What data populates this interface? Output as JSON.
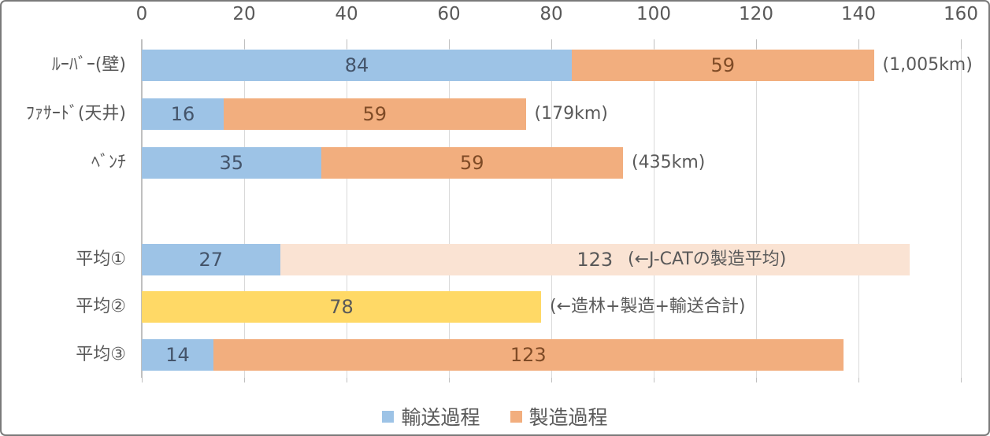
{
  "chart_data": {
    "type": "bar",
    "orientation": "horizontal",
    "stacked": true,
    "title": "",
    "x_axis": {
      "min": 0,
      "max": 160,
      "ticks": [
        "0",
        "20",
        "40",
        "60",
        "80",
        "100",
        "120",
        "140",
        "160"
      ],
      "grid": true
    },
    "colors": {
      "transport_blue": "#9DC3E6",
      "manufacture_orange": "#F2AE7E",
      "average_peach": "#FAE3D3",
      "total_yellow": "#FFD966",
      "value_on_blue": "#44546A",
      "value_on_orange": "#7F4B26",
      "value_on_light": "#595959",
      "axis_text": "#595959",
      "gridline": "#D9D9D9",
      "axis_line": "#BFBFBF"
    },
    "legend": {
      "position": "bottom",
      "items": [
        {
          "label": "輸送過程",
          "color": "#9DC3E6"
        },
        {
          "label": "製造過程",
          "color": "#F2AE7E"
        }
      ]
    },
    "rows": [
      {
        "label": "ﾙｰﾊﾞｰ(壁)",
        "annotation": "(1,005km)",
        "segments": [
          {
            "series": "輸送過程",
            "value": 84,
            "color": "#9DC3E6",
            "label_color": "#44546A"
          },
          {
            "series": "製造過程",
            "value": 59,
            "color": "#F2AE7E",
            "label_color": "#7F4B26"
          }
        ]
      },
      {
        "label": "ﾌｧｻｰﾄﾞ(天井)",
        "annotation": "(179km)",
        "segments": [
          {
            "series": "輸送過程",
            "value": 16,
            "color": "#9DC3E6",
            "label_color": "#44546A"
          },
          {
            "series": "製造過程",
            "value": 59,
            "color": "#F2AE7E",
            "label_color": "#7F4B26"
          }
        ]
      },
      {
        "label": "ﾍﾞﾝﾁ",
        "annotation": "(435km)",
        "segments": [
          {
            "series": "輸送過程",
            "value": 35,
            "color": "#9DC3E6",
            "label_color": "#44546A"
          },
          {
            "series": "製造過程",
            "value": 59,
            "color": "#F2AE7E",
            "label_color": "#7F4B26"
          }
        ]
      },
      {
        "label": "平均①",
        "annotation": "(←J-CATの製造平均)",
        "segments": [
          {
            "series": "輸送過程",
            "value": 27,
            "color": "#9DC3E6",
            "label_color": "#44546A"
          },
          {
            "series": "製造過程",
            "value": 123,
            "color": "#FAE3D3",
            "label_color": "#595959"
          }
        ]
      },
      {
        "label": "平均②",
        "annotation": "(←造林+製造+輸送合計)",
        "segments": [
          {
            "series": "合計",
            "value": 78,
            "color": "#FFD966",
            "label_color": "#595959"
          }
        ]
      },
      {
        "label": "平均③",
        "annotation": "",
        "segments": [
          {
            "series": "輸送過程",
            "value": 14,
            "color": "#9DC3E6",
            "label_color": "#44546A"
          },
          {
            "series": "製造過程",
            "value": 123,
            "color": "#F2AE7E",
            "label_color": "#7F4B26"
          }
        ]
      }
    ]
  }
}
